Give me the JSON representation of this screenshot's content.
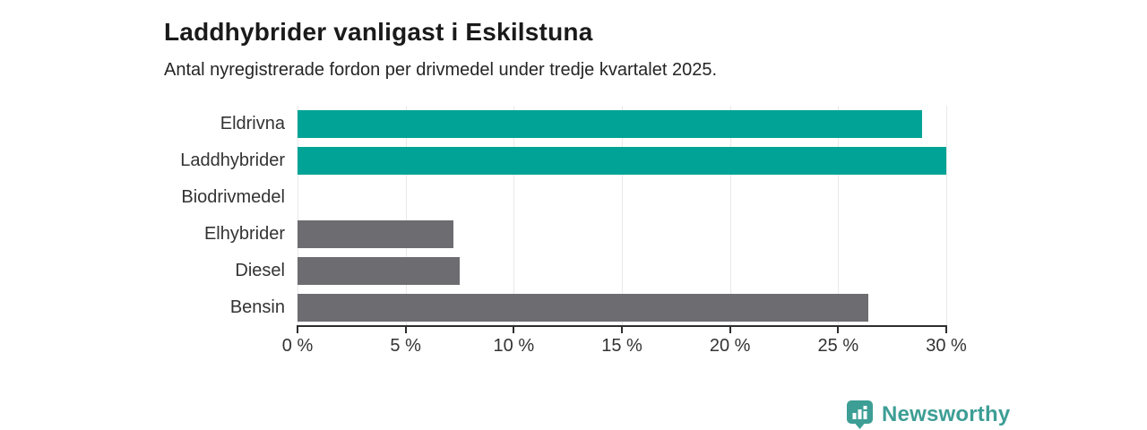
{
  "chart_data": {
    "type": "bar",
    "orientation": "horizontal",
    "title": "Laddhybrider vanligast i Eskilstuna",
    "subtitle": "Antal nyregistrerade fordon per drivmedel under tredje kvartalet 2025.",
    "categories": [
      "Eldrivna",
      "Laddhybrider",
      "Biodrivmedel",
      "Elhybrider",
      "Diesel",
      "Bensin"
    ],
    "values": [
      28.9,
      30.0,
      0,
      7.2,
      7.5,
      26.4
    ],
    "unit": "%",
    "xlim": [
      0,
      30
    ],
    "x_ticks": [
      0,
      5,
      10,
      15,
      20,
      25,
      30
    ],
    "x_tick_labels": [
      "0 %",
      "5 %",
      "10 %",
      "15 %",
      "20 %",
      "25 %",
      "30 %"
    ],
    "bar_colors": [
      "#00a396",
      "#00a396",
      "#6c6c71",
      "#6c6c71",
      "#6c6c71",
      "#6c6c71"
    ],
    "grid": "vertical",
    "legend": "none"
  },
  "colors": {
    "highlight": "#00a396",
    "neutral": "#6c6c71",
    "axis": "#2e2e2e",
    "grid": "#e9e9e9",
    "text": "#333333"
  },
  "branding": {
    "logo_text": "Newsworthy",
    "logo_color": "#3d9e95",
    "logo_icon": "newsworthy-bar-chart-pin-icon"
  }
}
